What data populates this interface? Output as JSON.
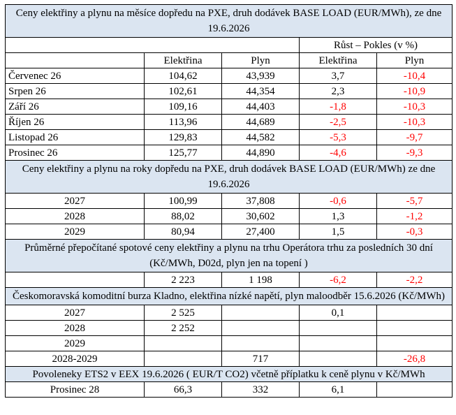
{
  "section_monthly": {
    "title": "Ceny elektřiny a plynu na měsíce dopředu na PXE, druh dodávek BASE LOAD (EUR/MWh), ze dne 19.6.2026",
    "group_header": "Růst – Pokles (v %)",
    "columns": [
      "Elektřina",
      "Plyn",
      "Elektřina",
      "Plyn"
    ],
    "rows": [
      {
        "label": "Červenec 26",
        "e": "104,62",
        "g": "43,939",
        "de": "3,7",
        "dg": "-10,4"
      },
      {
        "label": "Srpen 26",
        "e": "102,61",
        "g": "44,354",
        "de": "2,3",
        "dg": "-10,9"
      },
      {
        "label": "Září 26",
        "e": "109,16",
        "g": "44,403",
        "de": "-1,8",
        "dg": "-10,3"
      },
      {
        "label": "Říjen 26",
        "e": "113,96",
        "g": "44,689",
        "de": "-2,5",
        "dg": "-10,3"
      },
      {
        "label": "Listopad 26",
        "e": "129,83",
        "g": "44,582",
        "de": "-5,3",
        "dg": "-9,7"
      },
      {
        "label": "Prosinec 26",
        "e": "125,77",
        "g": "44,890",
        "de": "-4,6",
        "dg": "-9,3"
      }
    ]
  },
  "section_yearly": {
    "title": "Ceny elektřiny a plynu na roky dopředu na PXE, druh dodávek BASE LOAD (EUR/MWh) ze dne 19.6.2026",
    "rows": [
      {
        "label": "2027",
        "e": "100,99",
        "g": "37,808",
        "de": "-0,6",
        "dg": "-5,7"
      },
      {
        "label": "2028",
        "e": "88,02",
        "g": "30,602",
        "de": "1,3",
        "dg": "-1,2"
      },
      {
        "label": "2029",
        "e": "80,94",
        "g": "27,400",
        "de": "1,5",
        "dg": "-0,3"
      }
    ]
  },
  "section_spot": {
    "title": "Průměrné přepočítané spotové ceny elektřiny a plynu na trhu Operátora trhu za posledních 30 dní (Kč/MWh, D02d, plyn jen na topení )",
    "row": {
      "label": "",
      "e": "2 223",
      "g": "1 198",
      "de": "-6,2",
      "dg": "-2,2"
    }
  },
  "section_kladno": {
    "title": "Českomoravská komoditní burza Kladno, elektřina nízké napětí, plyn maloodběr 15.6.2026 (Kč/MWh)",
    "rows": [
      {
        "label": "2027",
        "e": "2 525",
        "g": "",
        "de": "0,1",
        "dg": ""
      },
      {
        "label": "2028",
        "e": "2 252",
        "g": "",
        "de": "",
        "dg": ""
      },
      {
        "label": "2029",
        "e": "",
        "g": "",
        "de": "",
        "dg": ""
      },
      {
        "label": "2028-2029",
        "e": "",
        "g": "717",
        "de": "",
        "dg": "-26,8"
      }
    ]
  },
  "section_ets": {
    "title": "Povoleneky ETS2 v EEX 19.6.2026  ( EUR/T CO2) včetně příplatku k ceně plynu v Kč/MWh",
    "row": {
      "label": "Prosinec 28",
      "e": "66,3",
      "g": "332",
      "de": "6,1",
      "dg": ""
    }
  },
  "colors": {
    "header_bg": "#dbe5f1",
    "negative": "#ff0000",
    "border": "#000000"
  }
}
